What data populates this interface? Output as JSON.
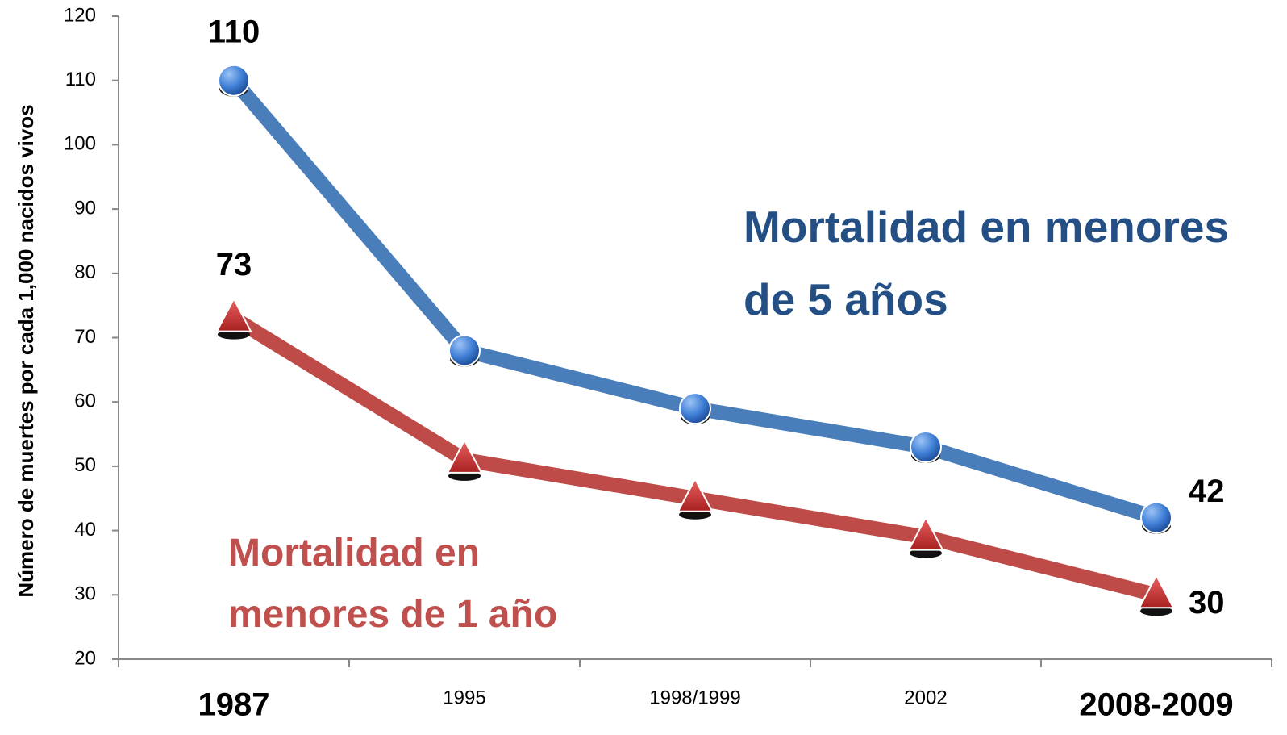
{
  "chart_data": {
    "type": "line",
    "y_label": "Número de muertes por cada 1,000 nacidos vivos",
    "categories": [
      "1987",
      "1995",
      "1998/1999",
      "2002",
      "2008-2009"
    ],
    "series": [
      {
        "name": "Mortalidad en menores de 5 años",
        "color": "#4a7ebb",
        "text_color": "#234f85",
        "marker": "circle",
        "values": [
          110,
          68,
          59,
          53,
          42
        ]
      },
      {
        "name": "Mortalidad en menores de 1 año",
        "color": "#be4b48",
        "text_color": "#c0504d",
        "marker": "triangle",
        "values": [
          73,
          51,
          45,
          39,
          30
        ]
      }
    ],
    "ylim": [
      20,
      120
    ],
    "yticks": [
      20,
      30,
      40,
      50,
      60,
      70,
      80,
      90,
      100,
      110,
      120
    ],
    "grid": false
  }
}
